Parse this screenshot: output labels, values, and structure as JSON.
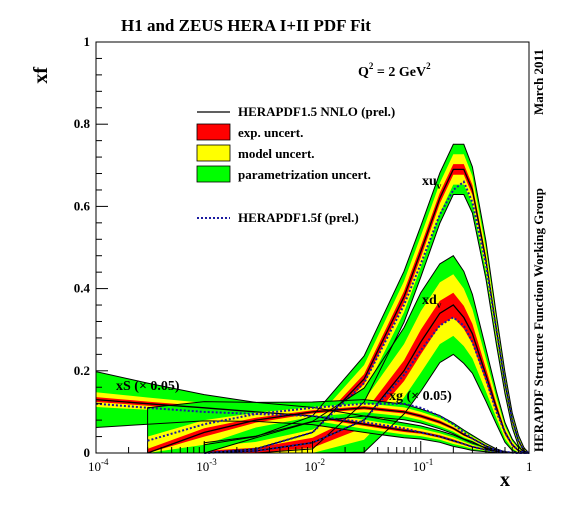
{
  "chart_data": {
    "type": "line",
    "title": "H1 and ZEUS HERA I+II PDF Fit",
    "scale_label": {
      "q": "Q",
      "eq": " = 2 GeV"
    },
    "xlabel": "x",
    "ylabel": "xf",
    "xscale": "log",
    "xlim": [
      0.0001,
      1
    ],
    "ylim": [
      0,
      1
    ],
    "x_ticks": [
      {
        "base": "10",
        "exp": "-4"
      },
      {
        "base": "10",
        "exp": "-3"
      },
      {
        "base": "10",
        "exp": "-2"
      },
      {
        "base": "10",
        "exp": "-1"
      },
      {
        "base": "1",
        "exp": ""
      }
    ],
    "y_ticks": [
      "0",
      "0.2",
      "0.4",
      "0.6",
      "0.8",
      "1"
    ],
    "side_text_top": "March 2011",
    "side_text_bottom": "HERAPDF Structure Function Working Group",
    "legend": [
      {
        "label": "HERAPDF1.5 NNLO (prel.)",
        "kind": "line",
        "color": "#000000"
      },
      {
        "label": "exp. uncert.",
        "kind": "box",
        "color": "#ff0000"
      },
      {
        "label": "model uncert.",
        "kind": "box",
        "color": "#ffff00"
      },
      {
        "label": "parametrization uncert.",
        "kind": "box",
        "color": "#00ff00"
      },
      {
        "label": "HERAPDF1.5f (prel.)",
        "kind": "dotted",
        "color": "#1a1aa0"
      }
    ],
    "curve_labels": {
      "xuv": {
        "base": "xu",
        "sub": "v"
      },
      "xdv": {
        "base": "xd",
        "sub": "v"
      },
      "xS": "xS (× 0.05)",
      "xg": "xg (× 0.05)"
    },
    "x": [
      0.0001,
      0.0003,
      0.001,
      0.003,
      0.01,
      0.03,
      0.07,
      0.1,
      0.15,
      0.2,
      0.25,
      0.3,
      0.4,
      0.5,
      0.6,
      0.7,
      0.8,
      0.9,
      1.0
    ],
    "series": [
      {
        "key": "xuv",
        "central": [
          null,
          null,
          0.0,
          0.01,
          0.05,
          0.18,
          0.38,
          0.49,
          0.62,
          0.69,
          0.69,
          0.64,
          0.47,
          0.3,
          0.17,
          0.08,
          0.03,
          0.005,
          0.0
        ],
        "dotted": [
          null,
          null,
          0.0,
          0.01,
          0.05,
          0.17,
          0.36,
          0.46,
          0.58,
          0.64,
          0.66,
          0.61,
          0.46,
          0.3,
          0.17,
          0.08,
          0.03,
          0.005,
          0.0
        ],
        "exp_half": [
          null,
          null,
          0.004,
          0.006,
          0.008,
          0.012,
          0.014,
          0.014,
          0.013,
          0.013,
          0.013,
          0.012,
          0.01,
          0.008,
          0.006,
          0.004,
          0.003,
          0.002,
          0.0
        ],
        "model_half": [
          null,
          null,
          0.008,
          0.012,
          0.016,
          0.022,
          0.024,
          0.024,
          0.024,
          0.024,
          0.024,
          0.022,
          0.018,
          0.014,
          0.01,
          0.007,
          0.005,
          0.003,
          0.0
        ],
        "param_half": [
          null,
          null,
          0.008,
          0.012,
          0.016,
          0.022,
          0.024,
          0.024,
          0.024,
          0.024,
          0.024,
          0.022,
          0.018,
          0.014,
          0.01,
          0.007,
          0.005,
          0.003,
          0.0
        ]
      },
      {
        "key": "xdv",
        "central": [
          null,
          null,
          0.0,
          0.005,
          0.025,
          0.08,
          0.2,
          0.27,
          0.34,
          0.36,
          0.33,
          0.29,
          0.19,
          0.11,
          0.05,
          0.02,
          0.006,
          0.001,
          0.0
        ],
        "dotted": [
          null,
          null,
          0.0,
          0.005,
          0.025,
          0.08,
          0.19,
          0.25,
          0.31,
          0.33,
          0.31,
          0.27,
          0.18,
          0.1,
          0.05,
          0.02,
          0.006,
          0.001,
          0.0
        ],
        "exp_half": [
          null,
          null,
          0.005,
          0.008,
          0.012,
          0.018,
          0.025,
          0.03,
          0.03,
          0.03,
          0.028,
          0.024,
          0.016,
          0.01,
          0.006,
          0.004,
          0.002,
          0.001,
          0.0
        ],
        "model_half": [
          null,
          null,
          0.01,
          0.014,
          0.02,
          0.03,
          0.04,
          0.045,
          0.045,
          0.045,
          0.042,
          0.036,
          0.024,
          0.015,
          0.009,
          0.005,
          0.003,
          0.001,
          0.0
        ],
        "param_half": [
          null,
          null,
          0.01,
          0.014,
          0.02,
          0.03,
          0.04,
          0.045,
          0.045,
          0.045,
          0.042,
          0.036,
          0.024,
          0.015,
          0.009,
          0.005,
          0.003,
          0.001,
          0.0
        ]
      },
      {
        "key": "xS",
        "central": [
          0.13,
          0.12,
          0.11,
          0.1,
          0.09,
          0.07,
          0.055,
          0.05,
          0.04,
          0.03,
          0.022,
          0.015,
          0.008,
          0.004,
          0.002,
          0.001,
          0.0,
          0.0,
          0.0
        ],
        "dotted": [
          0.12,
          0.11,
          0.1,
          0.095,
          0.09,
          0.075,
          0.06,
          0.05,
          0.04,
          0.03,
          0.022,
          0.015,
          0.008,
          0.004,
          0.002,
          0.001,
          0.0,
          0.0,
          0.0
        ],
        "exp_half": [
          0.006,
          0.005,
          0.004,
          0.004,
          0.004,
          0.004,
          0.004,
          0.003,
          0.003,
          0.003,
          0.002,
          0.002,
          0.001,
          0.001,
          0.0,
          0.0,
          0.0,
          0.0,
          0.0
        ],
        "model_half": [
          0.012,
          0.01,
          0.008,
          0.007,
          0.007,
          0.007,
          0.006,
          0.006,
          0.005,
          0.005,
          0.004,
          0.003,
          0.002,
          0.001,
          0.0,
          0.0,
          0.0,
          0.0,
          0.0
        ],
        "param_half": [
          0.05,
          0.035,
          0.02,
          0.012,
          0.01,
          0.009,
          0.008,
          0.007,
          0.006,
          0.006,
          0.005,
          0.004,
          0.002,
          0.001,
          0.0,
          0.0,
          0.0,
          0.0,
          0.0
        ]
      },
      {
        "key": "xg",
        "central": [
          null,
          0.0,
          0.05,
          0.08,
          0.1,
          0.11,
          0.1,
          0.09,
          0.075,
          0.06,
          0.045,
          0.035,
          0.017,
          0.007,
          0.003,
          0.001,
          0.0,
          0.0,
          0.0
        ],
        "dotted": [
          null,
          0.03,
          0.07,
          0.095,
          0.11,
          0.12,
          0.12,
          0.11,
          0.09,
          0.07,
          0.05,
          0.035,
          0.017,
          0.007,
          0.003,
          0.001,
          0.0,
          0.0,
          0.0
        ],
        "exp_half": [
          null,
          0.01,
          0.01,
          0.006,
          0.004,
          0.004,
          0.004,
          0.004,
          0.004,
          0.003,
          0.003,
          0.002,
          0.002,
          0.001,
          0.0,
          0.0,
          0.0,
          0.0,
          0.0
        ],
        "model_half": [
          null,
          0.03,
          0.02,
          0.012,
          0.008,
          0.007,
          0.007,
          0.006,
          0.006,
          0.005,
          0.004,
          0.003,
          0.002,
          0.001,
          0.0,
          0.0,
          0.0,
          0.0,
          0.0
        ],
        "param_half": [
          null,
          0.07,
          0.045,
          0.025,
          0.012,
          0.009,
          0.008,
          0.007,
          0.006,
          0.005,
          0.004,
          0.003,
          0.002,
          0.001,
          0.0,
          0.0,
          0.0,
          0.0,
          0.0
        ]
      }
    ]
  }
}
